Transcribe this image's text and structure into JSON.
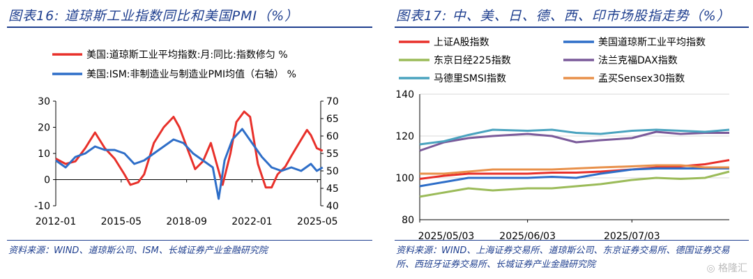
{
  "left": {
    "title": "图表16:  道琼斯工业指数同比和美国PMI（%）",
    "source": "资料来源：WIND、道琼斯公司、ISM、长城证券产业金融研究院"
  },
  "right": {
    "title": "图表17:  中、美、日、德、西、印市场股指走势（%）",
    "source": "资料来源：WIND、上海证券交易所、道琼斯公司、东京证券交易所、德国证券交易所、西班牙证券交易所、长城证券产业金融研究院"
  },
  "watermark": "格隆汇",
  "colors": {
    "title": "#1f3f8f",
    "red": "#e8302a",
    "blue": "#2e6ec8",
    "green": "#9bbb59",
    "purple": "#7a5a9a",
    "teal": "#4aa3bf",
    "orange": "#e8904a"
  },
  "chart_data": [
    {
      "type": "line",
      "x_tick_labels": [
        "2012-01",
        "2015-05",
        "2018-09",
        "2022-01",
        "2025-05"
      ],
      "xlim": [
        "2012-01",
        "2025-07"
      ],
      "ylim_left": [
        -10,
        30
      ],
      "yticks_left": [
        -10,
        0,
        10,
        20,
        30
      ],
      "ylim_right": [
        40,
        70
      ],
      "yticks_right": [
        40,
        45,
        50,
        55,
        60,
        65,
        70
      ],
      "legend_position": "top-left",
      "series": [
        {
          "name": "美国:道琼斯工业平均指数:月:同比:指数修匀 %",
          "color": "#e8302a",
          "axis": "left",
          "points": [
            [
              2012.0,
              8
            ],
            [
              2012.5,
              6
            ],
            [
              2013.0,
              7
            ],
            [
              2013.5,
              12
            ],
            [
              2014.0,
              18
            ],
            [
              2014.5,
              12
            ],
            [
              2015.0,
              8
            ],
            [
              2015.5,
              2
            ],
            [
              2015.8,
              -2
            ],
            [
              2016.2,
              -1
            ],
            [
              2016.5,
              2
            ],
            [
              2017.0,
              14
            ],
            [
              2017.5,
              20
            ],
            [
              2018.0,
              24
            ],
            [
              2018.3,
              20
            ],
            [
              2018.8,
              10
            ],
            [
              2019.1,
              4
            ],
            [
              2019.5,
              7
            ],
            [
              2019.9,
              14
            ],
            [
              2020.2,
              6
            ],
            [
              2020.5,
              -2
            ],
            [
              2020.9,
              10
            ],
            [
              2021.2,
              22
            ],
            [
              2021.6,
              26
            ],
            [
              2021.9,
              24
            ],
            [
              2022.3,
              6
            ],
            [
              2022.7,
              -3
            ],
            [
              2023.0,
              -3
            ],
            [
              2023.3,
              2
            ],
            [
              2023.7,
              5
            ],
            [
              2024.0,
              9
            ],
            [
              2024.4,
              14
            ],
            [
              2024.8,
              19
            ],
            [
              2025.0,
              17
            ],
            [
              2025.3,
              12
            ],
            [
              2025.6,
              11
            ]
          ]
        },
        {
          "name": "美国:ISM:非制造业与制造业PMI均值（右轴） %",
          "color": "#2e6ec8",
          "axis": "right",
          "points": [
            [
              2012.0,
              53
            ],
            [
              2012.5,
              51
            ],
            [
              2013.0,
              54
            ],
            [
              2013.5,
              55
            ],
            [
              2014.0,
              57
            ],
            [
              2014.5,
              56
            ],
            [
              2015.0,
              56
            ],
            [
              2015.5,
              55
            ],
            [
              2016.0,
              52
            ],
            [
              2016.5,
              53
            ],
            [
              2017.0,
              55
            ],
            [
              2017.5,
              57
            ],
            [
              2018.0,
              59
            ],
            [
              2018.5,
              58
            ],
            [
              2019.0,
              55
            ],
            [
              2019.5,
              53
            ],
            [
              2020.0,
              51
            ],
            [
              2020.3,
              42
            ],
            [
              2020.6,
              53
            ],
            [
              2021.0,
              59
            ],
            [
              2021.5,
              62
            ],
            [
              2022.0,
              58
            ],
            [
              2022.5,
              54
            ],
            [
              2023.0,
              51
            ],
            [
              2023.5,
              50
            ],
            [
              2024.0,
              51
            ],
            [
              2024.5,
              50
            ],
            [
              2025.0,
              52
            ],
            [
              2025.3,
              50
            ],
            [
              2025.6,
              51
            ]
          ]
        }
      ]
    },
    {
      "type": "line",
      "x_tick_labels": [
        "2025/05/03",
        "2025/06/03",
        "2025/07/03"
      ],
      "xlim": [
        "2025/05/03",
        "2025/07/31"
      ],
      "ylim": [
        80,
        140
      ],
      "yticks": [
        80,
        100,
        120,
        140
      ],
      "grid": "horizontal",
      "legend_position": "top",
      "series": [
        {
          "name": "上证A股指数",
          "color": "#e8302a",
          "points": [
            [
              "2025/05/03",
              99.5
            ],
            [
              "2025/05/10",
              101
            ],
            [
              "2025/05/17",
              102
            ],
            [
              "2025/05/24",
              102
            ],
            [
              "2025/06/03",
              102
            ],
            [
              "2025/06/10",
              102.5
            ],
            [
              "2025/06/17",
              102.5
            ],
            [
              "2025/06/24",
              103
            ],
            [
              "2025/07/03",
              104
            ],
            [
              "2025/07/10",
              105
            ],
            [
              "2025/07/17",
              105.5
            ],
            [
              "2025/07/24",
              106.5
            ],
            [
              "2025/07/31",
              108.5
            ]
          ]
        },
        {
          "name": "美国道琼斯工业平均指数",
          "color": "#2e6ec8",
          "points": [
            [
              "2025/05/03",
              96
            ],
            [
              "2025/05/10",
              98
            ],
            [
              "2025/05/17",
              100
            ],
            [
              "2025/05/24",
              100
            ],
            [
              "2025/06/03",
              100
            ],
            [
              "2025/06/10",
              100.5
            ],
            [
              "2025/06/17",
              100
            ],
            [
              "2025/06/24",
              102
            ],
            [
              "2025/07/03",
              104
            ],
            [
              "2025/07/10",
              104.5
            ],
            [
              "2025/07/17",
              104.5
            ],
            [
              "2025/07/24",
              104.5
            ],
            [
              "2025/07/31",
              104.5
            ]
          ]
        },
        {
          "name": "东京日经225指数",
          "color": "#9bbb59",
          "points": [
            [
              "2025/05/03",
              91
            ],
            [
              "2025/05/10",
              93
            ],
            [
              "2025/05/17",
              95
            ],
            [
              "2025/05/24",
              94
            ],
            [
              "2025/06/03",
              95
            ],
            [
              "2025/06/10",
              95
            ],
            [
              "2025/06/17",
              96
            ],
            [
              "2025/06/24",
              97
            ],
            [
              "2025/07/03",
              99
            ],
            [
              "2025/07/10",
              100
            ],
            [
              "2025/07/17",
              99.5
            ],
            [
              "2025/07/24",
              100
            ],
            [
              "2025/07/31",
              103
            ]
          ]
        },
        {
          "name": "法兰克福DAX指数",
          "color": "#7a5a9a",
          "points": [
            [
              "2025/05/03",
              113
            ],
            [
              "2025/05/10",
              117
            ],
            [
              "2025/05/17",
              119
            ],
            [
              "2025/05/24",
              120
            ],
            [
              "2025/06/03",
              121
            ],
            [
              "2025/06/10",
              120
            ],
            [
              "2025/06/17",
              117
            ],
            [
              "2025/06/24",
              118
            ],
            [
              "2025/07/03",
              119
            ],
            [
              "2025/07/10",
              122
            ],
            [
              "2025/07/17",
              121
            ],
            [
              "2025/07/24",
              121.5
            ],
            [
              "2025/07/31",
              121.5
            ]
          ]
        },
        {
          "name": "马德里SMSI指数",
          "color": "#4aa3bf",
          "points": [
            [
              "2025/05/03",
              116
            ],
            [
              "2025/05/10",
              117.5
            ],
            [
              "2025/05/17",
              120.5
            ],
            [
              "2025/05/24",
              123
            ],
            [
              "2025/06/03",
              122.5
            ],
            [
              "2025/06/10",
              123
            ],
            [
              "2025/06/17",
              121.5
            ],
            [
              "2025/06/24",
              121
            ],
            [
              "2025/07/03",
              122.5
            ],
            [
              "2025/07/10",
              123
            ],
            [
              "2025/07/17",
              122.5
            ],
            [
              "2025/07/24",
              122
            ],
            [
              "2025/07/31",
              123
            ]
          ]
        },
        {
          "name": "孟买Sensex30指数",
          "color": "#e8904a",
          "points": [
            [
              "2025/05/03",
              102
            ],
            [
              "2025/05/10",
              102
            ],
            [
              "2025/05/17",
              103
            ],
            [
              "2025/05/24",
              104
            ],
            [
              "2025/06/03",
              104
            ],
            [
              "2025/06/10",
              104
            ],
            [
              "2025/06/17",
              104.5
            ],
            [
              "2025/06/24",
              105
            ],
            [
              "2025/07/03",
              105.5
            ],
            [
              "2025/07/10",
              106
            ],
            [
              "2025/07/17",
              106
            ],
            [
              "2025/07/24",
              105
            ],
            [
              "2025/07/31",
              105
            ]
          ]
        }
      ]
    }
  ]
}
